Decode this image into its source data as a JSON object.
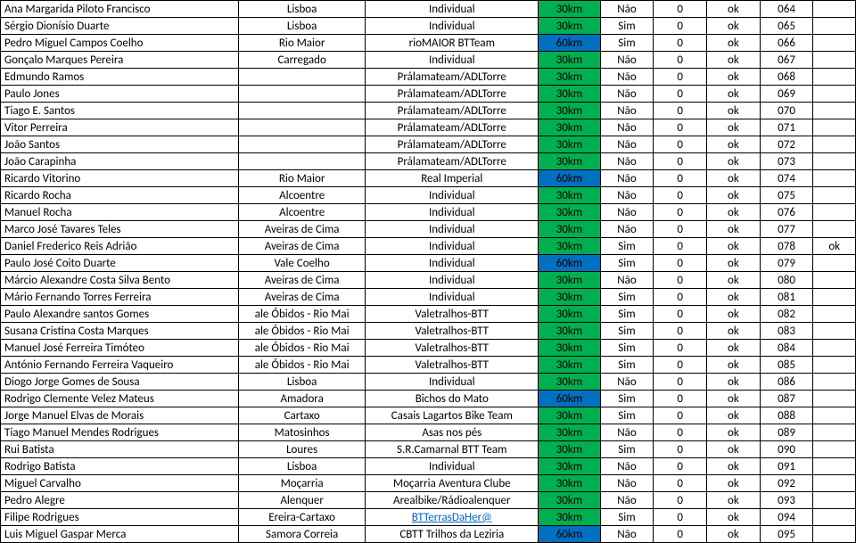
{
  "colors": {
    "green": "#00b050",
    "blue": "#0070c0",
    "linkcolor": "#0563c1"
  },
  "rows": [
    {
      "name": "Ana Margarida Piloto Francisco",
      "city": "Lisboa",
      "team": "Individual",
      "dist": "30km",
      "distColor": "green",
      "yn": "Não",
      "zero": "0",
      "ok": "ok",
      "num": "064",
      "ext": ""
    },
    {
      "name": "Sérgio Dionísio Duarte",
      "city": "Lisboa",
      "team": "Individual",
      "dist": "30km",
      "distColor": "green",
      "yn": "Sim",
      "zero": "0",
      "ok": "ok",
      "num": "065",
      "ext": ""
    },
    {
      "name": "Pedro Miguel Campos Coelho",
      "city": "Rio Maior",
      "team": "rioMAIOR BTTeam",
      "dist": "60km",
      "distColor": "blue",
      "yn": "Sim",
      "zero": "0",
      "ok": "ok",
      "num": "066",
      "ext": ""
    },
    {
      "name": "Gonçalo Marques Pereira",
      "city": "Carregado",
      "team": "Individual",
      "dist": "30km",
      "distColor": "green",
      "yn": "Não",
      "zero": "0",
      "ok": "ok",
      "num": "067",
      "ext": ""
    },
    {
      "name": "Edmundo Ramos",
      "city": "",
      "team": "Prálamateam/ADLTorre",
      "dist": "30km",
      "distColor": "green",
      "yn": "Não",
      "zero": "0",
      "ok": "ok",
      "num": "068",
      "ext": ""
    },
    {
      "name": "Paulo Jones",
      "city": "",
      "team": "Prálamateam/ADLTorre",
      "dist": "30km",
      "distColor": "green",
      "yn": "Não",
      "zero": "0",
      "ok": "ok",
      "num": "069",
      "ext": ""
    },
    {
      "name": "Tiago E. Santos",
      "city": "",
      "team": "Prálamateam/ADLTorre",
      "dist": "30km",
      "distColor": "green",
      "yn": "Não",
      "zero": "0",
      "ok": "ok",
      "num": "070",
      "ext": ""
    },
    {
      "name": "Vitor Perreira",
      "city": "",
      "team": "Prálamateam/ADLTorre",
      "dist": "30km",
      "distColor": "green",
      "yn": "Não",
      "zero": "0",
      "ok": "ok",
      "num": "071",
      "ext": ""
    },
    {
      "name": "João Santos",
      "city": "",
      "team": "Prálamateam/ADLTorre",
      "dist": "30km",
      "distColor": "green",
      "yn": "Não",
      "zero": "0",
      "ok": "ok",
      "num": "072",
      "ext": ""
    },
    {
      "name": "João Carapinha",
      "city": "",
      "team": "Prálamateam/ADLTorre",
      "dist": "30km",
      "distColor": "green",
      "yn": "Não",
      "zero": "0",
      "ok": "ok",
      "num": "073",
      "ext": ""
    },
    {
      "name": "Ricardo Vitorino",
      "city": "Rio Maior",
      "team": "Real Imperial",
      "dist": "60km",
      "distColor": "blue",
      "yn": "Não",
      "zero": "0",
      "ok": "ok",
      "num": "074",
      "ext": ""
    },
    {
      "name": "Ricardo Rocha",
      "city": "Alcoentre",
      "team": "Individual",
      "dist": "30km",
      "distColor": "green",
      "yn": "Não",
      "zero": "0",
      "ok": "ok",
      "num": "075",
      "ext": ""
    },
    {
      "name": "Manuel Rocha",
      "city": "Alcoentre",
      "team": "Individual",
      "dist": "30km",
      "distColor": "green",
      "yn": "Não",
      "zero": "0",
      "ok": "ok",
      "num": "076",
      "ext": ""
    },
    {
      "name": "Marco José Tavares Teles",
      "city": "Aveiras de Cima",
      "team": "Individual",
      "dist": "30km",
      "distColor": "green",
      "yn": "Não",
      "zero": "0",
      "ok": "ok",
      "num": "077",
      "ext": ""
    },
    {
      "name": "Daniel Frederico Reis Adrião",
      "city": "Aveiras de Cima",
      "team": "Individual",
      "dist": "30km",
      "distColor": "green",
      "yn": "Sim",
      "zero": "0",
      "ok": "ok",
      "num": "078",
      "ext": "ok"
    },
    {
      "name": "Paulo José Coito Duarte",
      "city": "Vale Coelho",
      "team": "Individual",
      "dist": "60km",
      "distColor": "blue",
      "yn": "Sim",
      "zero": "0",
      "ok": "ok",
      "num": "079",
      "ext": ""
    },
    {
      "name": "Márcio Alexandre Costa Silva Bento",
      "city": "Aveiras de Cima",
      "team": "Individual",
      "dist": "30km",
      "distColor": "green",
      "yn": "Não",
      "zero": "0",
      "ok": "ok",
      "num": "080",
      "ext": ""
    },
    {
      "name": "Mário Fernando Torres Ferreira",
      "city": "Aveiras de Cima",
      "team": "Individual",
      "dist": "30km",
      "distColor": "green",
      "yn": "Sim",
      "zero": "0",
      "ok": "ok",
      "num": "081",
      "ext": ""
    },
    {
      "name": "Paulo Alexandre santos Gomes",
      "city": "ale Óbidos - Rio Mai",
      "team": "Valetralhos-BTT",
      "dist": "30km",
      "distColor": "green",
      "yn": "Sim",
      "zero": "0",
      "ok": "ok",
      "num": "082",
      "ext": ""
    },
    {
      "name": "Susana Cristina Costa Marques",
      "city": "ale Óbidos - Rio Mai",
      "team": "Valetralhos-BTT",
      "dist": "30km",
      "distColor": "green",
      "yn": "Sim",
      "zero": "0",
      "ok": "ok",
      "num": "083",
      "ext": ""
    },
    {
      "name": "Manuel José Ferreira Timóteo",
      "city": "ale Óbidos - Rio Mai",
      "team": "Valetralhos-BTT",
      "dist": "30km",
      "distColor": "green",
      "yn": "Sim",
      "zero": "0",
      "ok": "ok",
      "num": "084",
      "ext": ""
    },
    {
      "name": "António Fernando Ferreira Vaqueiro",
      "city": "ale Óbidos - Rio Mai",
      "team": "Valetralhos-BTT",
      "dist": "30km",
      "distColor": "green",
      "yn": "Sim",
      "zero": "0",
      "ok": "ok",
      "num": "085",
      "ext": ""
    },
    {
      "name": "Diogo Jorge Gomes de Sousa",
      "city": "Lisboa",
      "team": "Individual",
      "dist": "30km",
      "distColor": "green",
      "yn": "Não",
      "zero": "0",
      "ok": "ok",
      "num": "086",
      "ext": ""
    },
    {
      "name": "Rodrigo Clemente Velez Mateus",
      "city": "Amadora",
      "team": "Bichos do Mato",
      "dist": "60km",
      "distColor": "blue",
      "yn": "Sim",
      "zero": "0",
      "ok": "ok",
      "num": "087",
      "ext": ""
    },
    {
      "name": "Jorge Manuel Elvas de Morais",
      "city": "Cartaxo",
      "team": "Casais Lagartos Bike Team",
      "dist": "30km",
      "distColor": "green",
      "yn": "Sim",
      "zero": "0",
      "ok": "ok",
      "num": "088",
      "ext": ""
    },
    {
      "name": "Tiago Manuel Mendes Rodrigues",
      "city": "Matosinhos",
      "team": "Asas nos pés",
      "dist": "30km",
      "distColor": "green",
      "yn": "Não",
      "zero": "0",
      "ok": "ok",
      "num": "089",
      "ext": ""
    },
    {
      "name": "Rui Batista",
      "city": "Loures",
      "team": "S.R.Camarnal BTT Team",
      "dist": "30km",
      "distColor": "green",
      "yn": "Sim",
      "zero": "0",
      "ok": "ok",
      "num": "090",
      "ext": ""
    },
    {
      "name": "Rodrigo Batista",
      "city": "Lisboa",
      "team": "Individual",
      "dist": "30km",
      "distColor": "green",
      "yn": "Não",
      "zero": "0",
      "ok": "ok",
      "num": "091",
      "ext": ""
    },
    {
      "name": "Miguel Carvalho",
      "city": "Moçarria",
      "team": "Moçarria Aventura Clube",
      "dist": "30km",
      "distColor": "green",
      "yn": "Não",
      "zero": "0",
      "ok": "ok",
      "num": "092",
      "ext": ""
    },
    {
      "name": "Pedro Alegre",
      "city": "Alenquer",
      "team": "Arealbike/Rádioalenquer",
      "dist": "30km",
      "distColor": "green",
      "yn": "Não",
      "zero": "0",
      "ok": "ok",
      "num": "093",
      "ext": ""
    },
    {
      "name": "Filipe Rodrigues",
      "city": "Ereira-Cartaxo",
      "team": "BTTerrasDaHer@",
      "teamLink": true,
      "dist": "30km",
      "distColor": "green",
      "yn": "Sim",
      "zero": "0",
      "ok": "ok",
      "num": "094",
      "ext": ""
    },
    {
      "name": "Luis Miguel Gaspar Merca",
      "city": "Samora Correia",
      "team": "CBTT Trilhos da Leziria",
      "dist": "60km",
      "distColor": "blue",
      "yn": "Não",
      "zero": "0",
      "ok": "ok",
      "num": "095",
      "ext": ""
    }
  ]
}
